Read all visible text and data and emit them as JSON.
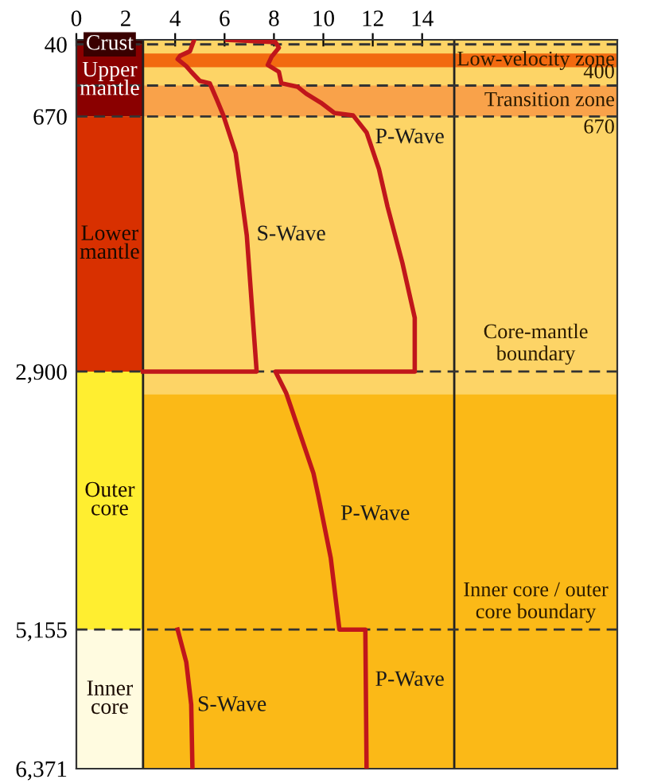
{
  "chart_data": {
    "type": "line",
    "xlim": [
      0,
      21.9
    ],
    "xticks": [
      0,
      2,
      4,
      6,
      8,
      10,
      12,
      14
    ],
    "ylim": [
      6371,
      0
    ],
    "yticks": [
      40,
      670,
      {
        "value": 2900,
        "label": "2,900"
      },
      {
        "value": 5155,
        "label": "5,155"
      },
      {
        "value": 6371,
        "label": "6,371"
      }
    ],
    "grid": false,
    "legend": false,
    "marker": "none",
    "line_style": "solid",
    "series": [
      {
        "color": "#c0161b",
        "x": [
          4.77,
          4.6,
          4.2,
          4.1,
          4.45,
          4.65,
          5.0,
          5.4,
          5.7,
          5.95,
          6.45,
          6.9,
          7.3,
          2.7,
          null,
          4.1,
          4.45,
          4.65,
          4.7
        ],
        "values": [
          0,
          100,
          140,
          170,
          230,
          280,
          360,
          380,
          530,
          660,
          990,
          1710,
          2900,
          2900,
          null,
          5155,
          5440,
          5810,
          6371
        ]
      },
      {
        "color": "#c0161b",
        "x": [
          6.1,
          8.06,
          8.2,
          7.9,
          7.75,
          8.2,
          8.3,
          8.95,
          9.3,
          9.9,
          10.45,
          11.2,
          11.75,
          12.25,
          12.6,
          13.2,
          13.7,
          13.7,
          8.06,
          8.5,
          9.6,
          9.8,
          10.3,
          10.65,
          11.7,
          11.75
        ],
        "values": [
          0,
          20,
          70,
          150,
          220,
          280,
          380,
          410,
          470,
          550,
          640,
          660,
          810,
          1130,
          1460,
          1950,
          2430,
          2900,
          2900,
          3090,
          3790,
          3990,
          4530,
          5155,
          5155,
          6371
        ]
      }
    ],
    "ref_lines": [
      {
        "axis": "x",
        "value": 2.7,
        "color": "#222222"
      },
      {
        "axis": "x",
        "value": 15.3,
        "color": "#222222"
      },
      {
        "axis": "y",
        "value": 40,
        "line_style": "dashed",
        "color": "#333333"
      },
      {
        "axis": "y",
        "value": 400,
        "label": "400",
        "line_style": "dashed",
        "color": "#333333"
      },
      {
        "axis": "y",
        "value": 670,
        "label": "670",
        "line_style": "dashed",
        "color": "#333333"
      },
      {
        "axis": "y",
        "value": 2900,
        "label": "Core-mantle\nboundary",
        "line_style": "dashed",
        "color": "#333333"
      },
      {
        "axis": "y",
        "value": 5155,
        "label": "Inner core / outer\ncore boundary",
        "line_style": "dashed",
        "color": "#333333"
      }
    ],
    "bands": [
      {
        "axis": "y",
        "from": 0,
        "to": 40,
        "label": "Crust",
        "color": "#3a0000"
      },
      {
        "axis": "y",
        "from": 40,
        "to": 670,
        "label": "Upper\nmantle",
        "color": "#8a0000"
      },
      {
        "axis": "y",
        "from": 670,
        "to": 2900,
        "label": "Lower\nmantle",
        "color": "#d83000"
      },
      {
        "axis": "y",
        "from": 2900,
        "to": 5155,
        "label": "Outer\ncore",
        "color": "#ffee30"
      },
      {
        "axis": "y",
        "from": 5155,
        "to": 6371,
        "label": "Inner\ncore",
        "color": "#fffbe0"
      },
      {
        "axis": "y",
        "from": 120,
        "to": 240,
        "label": "Low-velocity zone",
        "color": "#f26a10"
      },
      {
        "axis": "y",
        "from": 400,
        "to": 670,
        "label": "Transition zone",
        "color": "#f9a24a"
      }
    ],
    "annotations": [
      "P-Wave",
      "S-Wave",
      "P-Wave",
      "P-Wave",
      "S-Wave"
    ]
  }
}
